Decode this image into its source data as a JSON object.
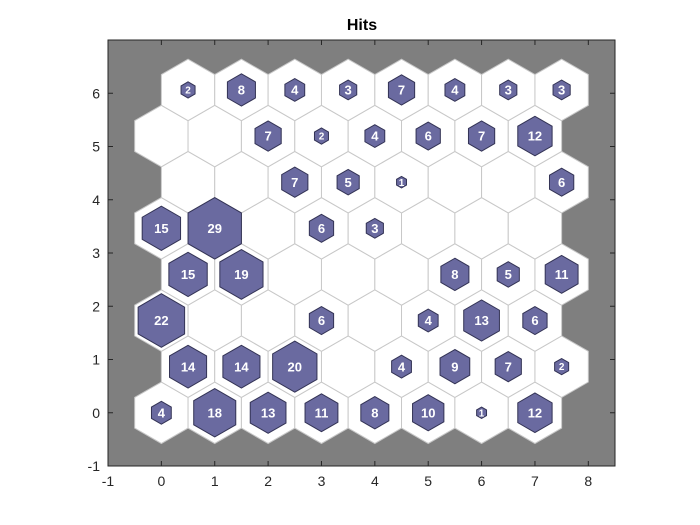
{
  "chart_data": {
    "type": "heatmap",
    "subtype": "som-hits-hexagonal",
    "title": "Hits",
    "xlabel": "",
    "ylabel": "",
    "xlim": [
      -1,
      8.5
    ],
    "ylim": [
      -1,
      7
    ],
    "xticks": [
      -1,
      0,
      1,
      2,
      3,
      4,
      5,
      6,
      7,
      8
    ],
    "yticks": [
      -1,
      0,
      1,
      2,
      3,
      4,
      5,
      6
    ],
    "grid_rows": 8,
    "grid_cols": 8,
    "max_hits": 29,
    "colors": {
      "axes_background": "#7f7f7f",
      "hex_fill": "#ffffff",
      "hex_edge": "#c8c8c8",
      "hit_fill": "#6a6aa0",
      "hit_edge": "#333355",
      "hit_text": "#ffffff"
    },
    "rows": [
      {
        "y": 0,
        "x_offset": 0,
        "hits": [
          4,
          18,
          13,
          11,
          8,
          10,
          1,
          12
        ]
      },
      {
        "y": 1,
        "x_offset": 0.5,
        "hits": [
          14,
          14,
          20,
          0,
          4,
          9,
          7,
          2
        ]
      },
      {
        "y": 2,
        "x_offset": 0,
        "hits": [
          22,
          0,
          0,
          6,
          0,
          4,
          13,
          6
        ]
      },
      {
        "y": 3,
        "x_offset": 0.5,
        "hits": [
          15,
          19,
          0,
          0,
          0,
          8,
          5,
          11
        ]
      },
      {
        "y": 4,
        "x_offset": 0,
        "hits": [
          15,
          29,
          0,
          6,
          3,
          0,
          0,
          0
        ]
      },
      {
        "y": 5,
        "x_offset": 0.5,
        "hits": [
          0,
          0,
          7,
          5,
          1,
          0,
          0,
          6
        ]
      },
      {
        "y": 6,
        "x_offset": 0,
        "hits": [
          0,
          0,
          7,
          2,
          4,
          6,
          7,
          12
        ]
      },
      {
        "y": 7,
        "x_offset": 0.5,
        "hits": [
          2,
          8,
          4,
          3,
          7,
          4,
          3,
          3
        ]
      }
    ]
  }
}
